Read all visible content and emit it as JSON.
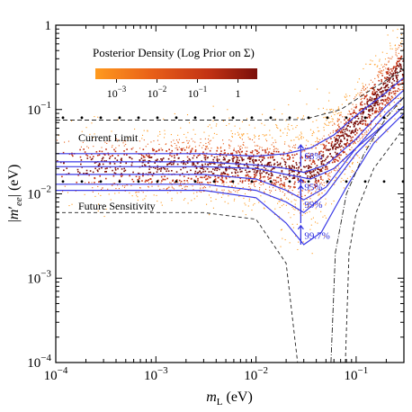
{
  "chart_data": {
    "type": "scatter",
    "title": "",
    "xlabel": "m_L (eV)",
    "ylabel": "|m'_ee| (eV)",
    "xscale": "log",
    "yscale": "log",
    "xlim": [
      0.0001,
      0.3
    ],
    "ylim": [
      0.0001,
      1
    ],
    "x_tick_values": [
      0.0001,
      0.001,
      0.01,
      0.1
    ],
    "x_tick_labels": [
      {
        "base": "10",
        "exp": "−4"
      },
      {
        "base": "10",
        "exp": "−3"
      },
      {
        "base": "10",
        "exp": "−2"
      },
      {
        "base": "10",
        "exp": "−1"
      }
    ],
    "y_tick_values": [
      0.0001,
      0.001,
      0.01,
      0.1,
      1
    ],
    "y_tick_labels": [
      {
        "base": "10",
        "exp": "−4"
      },
      {
        "base": "10",
        "exp": "−3"
      },
      {
        "base": "10",
        "exp": "−2"
      },
      {
        "base": "10",
        "exp": "−1"
      },
      {
        "base": "1",
        "exp": ""
      }
    ],
    "colorbar": {
      "title": "Posterior Density (Log Prior on Σ)",
      "tick_values": [
        0.001,
        0.01,
        0.1,
        1
      ],
      "tick_labels": [
        {
          "base": "10",
          "exp": "−3"
        },
        {
          "base": "10",
          "exp": "−2"
        },
        {
          "base": "10",
          "exp": "−1"
        },
        {
          "base": "1",
          "exp": ""
        }
      ],
      "colors": [
        "#ff9a1e",
        "#e85f18",
        "#c23214",
        "#7a0f0a"
      ]
    },
    "annotations": [
      {
        "text": "Current Limit",
        "x": 0.00012,
        "y": 0.048
      },
      {
        "text": "Future Sensitivity",
        "x": 0.00012,
        "y": 0.0078
      }
    ],
    "reference_lines": [
      {
        "name": "current-limit",
        "y": 0.075
      },
      {
        "name": "future-sensitivity",
        "y": 0.012
      }
    ],
    "credible_intervals": [
      {
        "label": "68%",
        "x": 0.028,
        "upper": 0.038,
        "lower": 0.021
      },
      {
        "label": "95%",
        "x": 0.028,
        "upper": 0.015,
        "lower": 0.0098
      },
      {
        "label": "99%",
        "x": 0.028,
        "upper": 0.0125,
        "lower": 0.0045
      },
      {
        "label": "99.7%",
        "x": 0.028,
        "upper": 0.0042,
        "lower": 0.0025
      }
    ],
    "contours": [
      {
        "name": "inner-upper",
        "points": [
          [
            0.0001,
            0.03
          ],
          [
            0.003,
            0.03
          ],
          [
            0.01,
            0.028
          ],
          [
            0.02,
            0.03
          ],
          [
            0.035,
            0.035
          ],
          [
            0.06,
            0.05
          ],
          [
            0.1,
            0.085
          ],
          [
            0.2,
            0.16
          ],
          [
            0.3,
            0.24
          ]
        ]
      },
      {
        "name": "inner-lower",
        "points": [
          [
            0.0001,
            0.021
          ],
          [
            0.003,
            0.021
          ],
          [
            0.01,
            0.02
          ],
          [
            0.02,
            0.017
          ],
          [
            0.035,
            0.015
          ],
          [
            0.06,
            0.02
          ],
          [
            0.1,
            0.035
          ],
          [
            0.2,
            0.07
          ],
          [
            0.3,
            0.11
          ]
        ]
      },
      {
        "name": "mid-upper",
        "points": [
          [
            0.0001,
            0.024
          ],
          [
            0.003,
            0.024
          ],
          [
            0.01,
            0.022
          ],
          [
            0.02,
            0.02
          ],
          [
            0.03,
            0.018
          ],
          [
            0.05,
            0.022
          ],
          [
            0.1,
            0.045
          ],
          [
            0.2,
            0.11
          ],
          [
            0.3,
            0.17
          ]
        ]
      },
      {
        "name": "mid-lower",
        "points": [
          [
            0.0001,
            0.013
          ],
          [
            0.003,
            0.013
          ],
          [
            0.01,
            0.011
          ],
          [
            0.02,
            0.008
          ],
          [
            0.03,
            0.006
          ],
          [
            0.05,
            0.01
          ],
          [
            0.1,
            0.03
          ],
          [
            0.2,
            0.07
          ],
          [
            0.3,
            0.11
          ]
        ]
      },
      {
        "name": "outer-upper",
        "points": [
          [
            0.0001,
            0.017
          ],
          [
            0.003,
            0.017
          ],
          [
            0.01,
            0.015
          ],
          [
            0.02,
            0.011
          ],
          [
            0.03,
            0.0085
          ],
          [
            0.05,
            0.012
          ],
          [
            0.1,
            0.035
          ],
          [
            0.2,
            0.09
          ],
          [
            0.3,
            0.14
          ]
        ]
      },
      {
        "name": "outer-lower",
        "points": [
          [
            0.0001,
            0.011
          ],
          [
            0.003,
            0.011
          ],
          [
            0.01,
            0.009
          ],
          [
            0.02,
            0.0045
          ],
          [
            0.03,
            0.0025
          ],
          [
            0.045,
            0.0035
          ],
          [
            0.08,
            0.012
          ],
          [
            0.15,
            0.04
          ],
          [
            0.3,
            0.09
          ]
        ]
      }
    ],
    "dashed_curves": [
      {
        "name": "dashed-1",
        "points": [
          [
            0.0001,
            0.006
          ],
          [
            0.003,
            0.006
          ],
          [
            0.01,
            0.005
          ],
          [
            0.02,
            0.0015
          ],
          [
            0.026,
            0.0001
          ]
        ]
      },
      {
        "name": "dashed-2",
        "points": [
          [
            0.0001,
            0.075
          ],
          [
            0.003,
            0.075
          ],
          [
            0.01,
            0.075
          ],
          [
            0.03,
            0.076
          ],
          [
            0.07,
            0.1
          ],
          [
            0.15,
            0.18
          ],
          [
            0.3,
            0.3
          ]
        ]
      },
      {
        "name": "dashdot-1",
        "points": [
          [
            0.056,
            0.0001
          ],
          [
            0.062,
            0.002
          ],
          [
            0.08,
            0.01
          ],
          [
            0.12,
            0.03
          ],
          [
            0.2,
            0.08
          ],
          [
            0.3,
            0.14
          ]
        ]
      },
      {
        "name": "dashed-3",
        "points": [
          [
            0.078,
            0.0001
          ],
          [
            0.085,
            0.002
          ],
          [
            0.1,
            0.006
          ],
          [
            0.15,
            0.02
          ],
          [
            0.3,
            0.06
          ]
        ]
      }
    ],
    "dotted_rows_y": [
      0.08,
      0.014
    ],
    "grid": false
  }
}
